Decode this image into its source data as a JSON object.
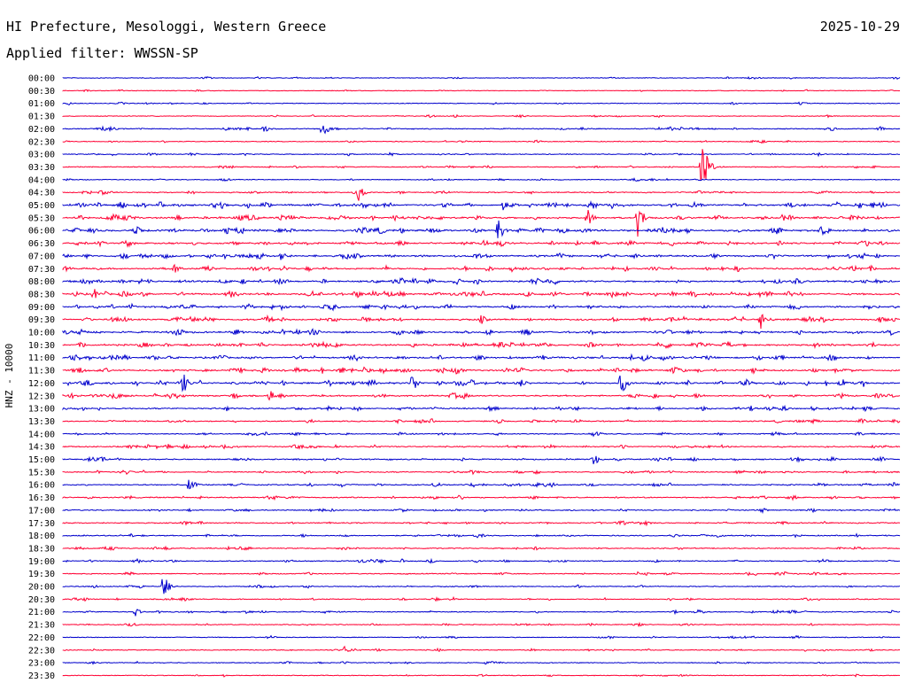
{
  "header": {
    "title": "HI Prefecture, Mesologgi, Western Greece",
    "date": "2025-10-29",
    "filter": "Applied filter: WWSSN-SP"
  },
  "chart_data": {
    "type": "line",
    "title": "HI Prefecture, Mesologgi, Western Greece",
    "ylabel": "HNZ - 10000",
    "xlabel": "",
    "row_labels": [
      "00:00",
      "00:30",
      "01:00",
      "01:30",
      "02:00",
      "02:30",
      "03:00",
      "03:30",
      "04:00",
      "04:30",
      "05:00",
      "05:30",
      "06:00",
      "06:30",
      "07:00",
      "07:30",
      "08:00",
      "08:30",
      "09:00",
      "09:30",
      "10:00",
      "10:30",
      "11:00",
      "11:30",
      "12:00",
      "12:30",
      "13:00",
      "13:30",
      "14:00",
      "14:30",
      "15:00",
      "15:30",
      "16:00",
      "16:30",
      "17:00",
      "17:30",
      "18:00",
      "18:30",
      "19:00",
      "19:30",
      "20:00",
      "20:30",
      "21:00",
      "21:30",
      "22:00",
      "22:30",
      "23:00",
      "23:30"
    ],
    "trace_colors": [
      "#0000cc",
      "#ff0033"
    ],
    "activity_levels": [
      0.2,
      0.15,
      0.2,
      0.2,
      0.4,
      0.25,
      0.3,
      0.35,
      0.25,
      0.45,
      0.9,
      0.85,
      0.95,
      0.8,
      0.8,
      0.75,
      0.8,
      0.9,
      0.75,
      0.8,
      0.9,
      0.85,
      0.8,
      0.9,
      0.9,
      0.7,
      0.65,
      0.5,
      0.5,
      0.55,
      0.55,
      0.5,
      0.5,
      0.5,
      0.45,
      0.45,
      0.45,
      0.4,
      0.4,
      0.4,
      0.35,
      0.35,
      0.35,
      0.3,
      0.25,
      0.3,
      0.25,
      0.2
    ],
    "events": [
      {
        "row": 4,
        "minute": 9.3,
        "amplitude": 12
      },
      {
        "row": 4,
        "minute": 7.2,
        "amplitude": 5
      },
      {
        "row": 7,
        "minute": 22.9,
        "amplitude": 40
      },
      {
        "row": 9,
        "minute": 10.6,
        "amplitude": 10
      },
      {
        "row": 10,
        "minute": 15.8,
        "amplitude": 8
      },
      {
        "row": 11,
        "minute": 18.8,
        "amplitude": 12
      },
      {
        "row": 11,
        "minute": 20.6,
        "amplitude": 22
      },
      {
        "row": 12,
        "minute": 15.6,
        "amplitude": 16
      },
      {
        "row": 14,
        "minute": 7.8,
        "amplitude": 8
      },
      {
        "row": 15,
        "minute": 4.0,
        "amplitude": 7
      },
      {
        "row": 17,
        "minute": 1.1,
        "amplitude": 8
      },
      {
        "row": 19,
        "minute": 25.0,
        "amplitude": 12
      },
      {
        "row": 19,
        "minute": 15.0,
        "amplitude": 6
      },
      {
        "row": 23,
        "minute": 14.1,
        "amplitude": 8
      },
      {
        "row": 24,
        "minute": 4.3,
        "amplitude": 14
      },
      {
        "row": 24,
        "minute": 12.5,
        "amplitude": 14
      },
      {
        "row": 24,
        "minute": 20.0,
        "amplitude": 16
      },
      {
        "row": 25,
        "minute": 7.4,
        "amplitude": 8
      },
      {
        "row": 30,
        "minute": 19.0,
        "amplitude": 10
      },
      {
        "row": 32,
        "minute": 4.5,
        "amplitude": 8
      },
      {
        "row": 40,
        "minute": 3.6,
        "amplitude": 16
      },
      {
        "row": 42,
        "minute": 2.6,
        "amplitude": 5
      },
      {
        "row": 45,
        "minute": 10.1,
        "amplitude": 5
      }
    ]
  }
}
